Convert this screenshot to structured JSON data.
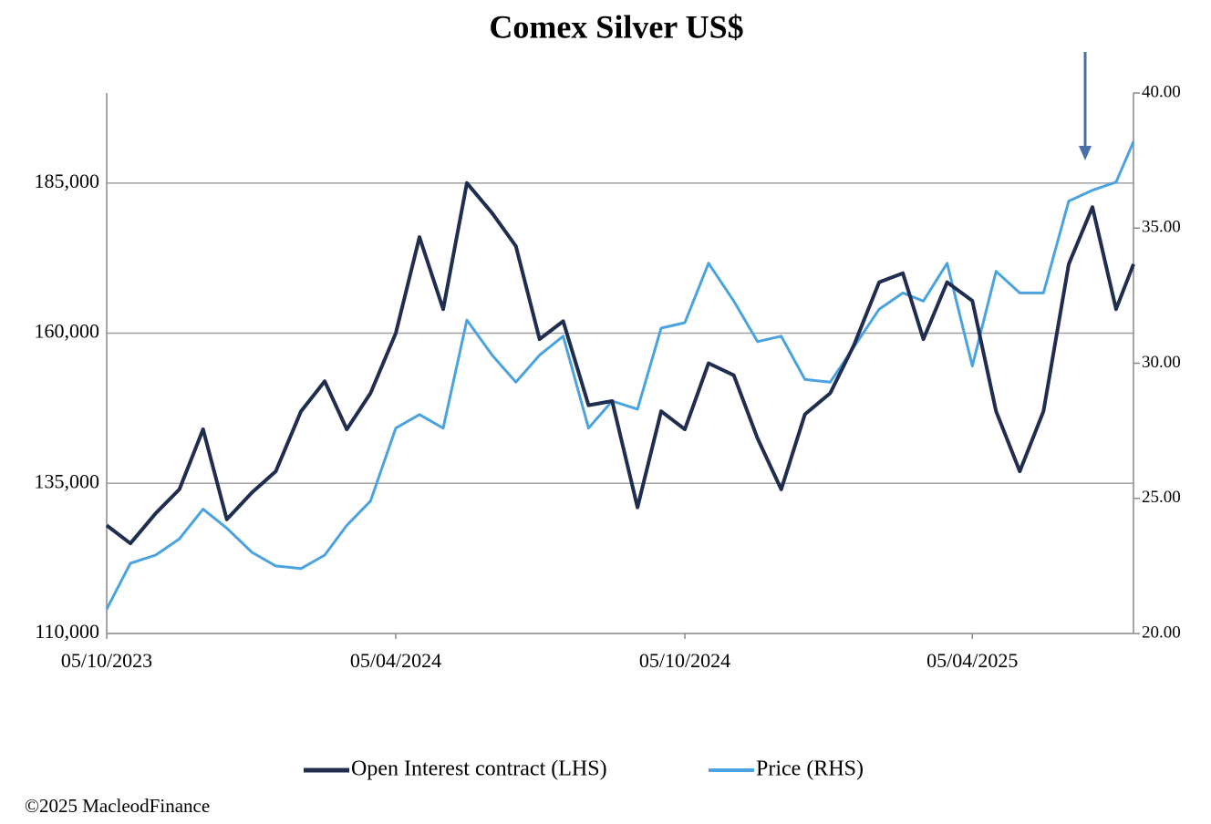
{
  "chart_data": {
    "type": "line",
    "title": "Comex Silver US$",
    "x": [
      "05/10/2023",
      "20/10/2023",
      "05/11/2023",
      "20/11/2023",
      "05/12/2023",
      "20/12/2023",
      "05/01/2024",
      "20/01/2024",
      "05/02/2024",
      "20/02/2024",
      "05/03/2024",
      "20/03/2024",
      "05/04/2024",
      "20/04/2024",
      "05/05/2024",
      "20/05/2024",
      "05/06/2024",
      "20/06/2024",
      "05/07/2024",
      "20/07/2024",
      "05/08/2024",
      "20/08/2024",
      "05/09/2024",
      "20/09/2024",
      "05/10/2024",
      "20/10/2024",
      "05/11/2024",
      "20/11/2024",
      "05/12/2024",
      "20/12/2024",
      "05/01/2025",
      "20/01/2025",
      "05/02/2025",
      "20/02/2025",
      "05/03/2025",
      "20/03/2025",
      "05/04/2025",
      "20/04/2025",
      "05/05/2025",
      "20/05/2025",
      "05/06/2025",
      "20/06/2025",
      "05/07/2025",
      "16/07/2025"
    ],
    "xlim": [
      "05/10/2023",
      "16/07/2025"
    ],
    "xticks": [
      "05/10/2023",
      "05/04/2024",
      "05/10/2024",
      "05/04/2025"
    ],
    "series": [
      {
        "name": "Open Interest contract (LHS)",
        "color": "#1f2d4f",
        "axis": "y",
        "values": [
          128000,
          125000,
          130000,
          134000,
          144000,
          129000,
          133500,
          137000,
          147000,
          152000,
          144000,
          150000,
          160000,
          176000,
          164000,
          185000,
          180000,
          174500,
          159000,
          162000,
          148000,
          148700,
          131000,
          147000,
          144000,
          155000,
          153000,
          142500,
          134000,
          146500,
          150000,
          158000,
          168500,
          170000,
          159000,
          168500,
          165400,
          147000,
          137000,
          147000,
          171500,
          181000,
          164000,
          171500
        ]
      },
      {
        "name": "Price (RHS)",
        "color": "#4aa3df",
        "axis": "y2",
        "values": [
          20.9,
          22.6,
          22.9,
          23.5,
          24.6,
          23.9,
          23.0,
          22.5,
          22.4,
          22.9,
          24.0,
          24.9,
          27.6,
          28.1,
          27.6,
          31.6,
          30.3,
          29.3,
          30.3,
          31.0,
          27.6,
          28.6,
          28.3,
          31.3,
          31.5,
          33.7,
          32.3,
          30.8,
          31.0,
          29.4,
          29.3,
          30.6,
          32.0,
          32.6,
          32.3,
          33.7,
          29.9,
          33.4,
          32.6,
          32.6,
          36.0,
          36.4,
          36.7,
          38.2
        ]
      }
    ],
    "ylim": [
      110000,
      200000
    ],
    "yticks": [
      {
        "value": 110000,
        "label": "110,000"
      },
      {
        "value": 135000,
        "label": "135,000"
      },
      {
        "value": 160000,
        "label": "160,000"
      },
      {
        "value": 185000,
        "label": "185,000"
      }
    ],
    "y2lim": [
      20,
      40
    ],
    "y2ticks": [
      {
        "value": 20,
        "label": "20.00"
      },
      {
        "value": 25,
        "label": "25.00"
      },
      {
        "value": 30,
        "label": "30.00"
      },
      {
        "value": 35,
        "label": "35.00"
      },
      {
        "value": 40,
        "label": "40.00"
      }
    ],
    "grid": true,
    "legend": "bottom",
    "footer": "©2025 MacleodFinance"
  }
}
